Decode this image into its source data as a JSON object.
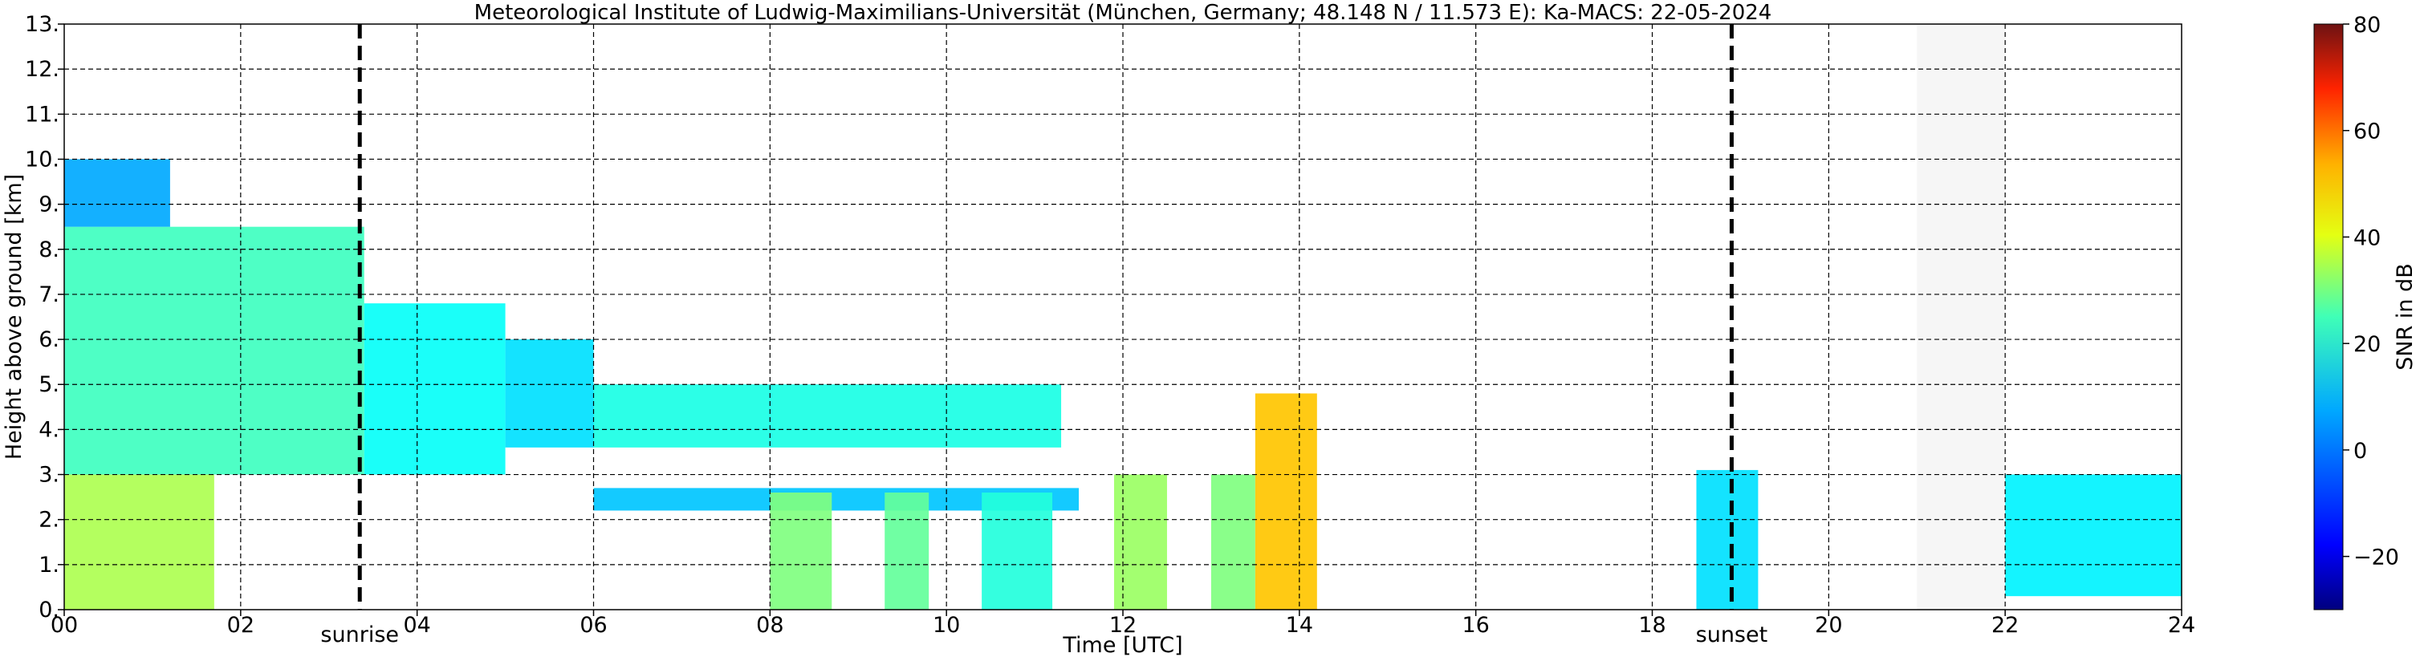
{
  "chart_data": {
    "type": "heatmap",
    "title": "Meteorological Institute of Ludwig-Maximilians-Universität (München, Germany; 48.148 N / 11.573 E):    Ka-MACS: 22-05-2024",
    "xlabel": "Time [UTC]",
    "ylabel": "Height above ground [km]",
    "xlim": [
      0,
      24
    ],
    "ylim": [
      0,
      13
    ],
    "x_ticks": [
      0,
      2,
      4,
      6,
      8,
      10,
      12,
      14,
      16,
      18,
      20,
      22,
      24
    ],
    "x_tick_labels": [
      "00",
      "02",
      "04",
      "06",
      "08",
      "10",
      "12",
      "14",
      "16",
      "18",
      "20",
      "22",
      "24"
    ],
    "y_ticks": [
      0,
      1,
      2,
      3,
      4,
      5,
      6,
      7,
      8,
      9,
      10,
      11,
      12,
      13
    ],
    "y_tick_labels": [
      "0.",
      "1.",
      "2.",
      "3.",
      "4.",
      "5.",
      "6.",
      "7.",
      "8.",
      "9.",
      "10.",
      "11.",
      "12.",
      "13."
    ],
    "grid": true,
    "colorbar": {
      "label": "SNR in dB",
      "range": [
        -30,
        80
      ],
      "ticks": [
        -20,
        0,
        20,
        40,
        60,
        80
      ],
      "tick_labels": [
        "−20",
        "0",
        "20",
        "40",
        "60",
        "80"
      ],
      "colormap": "jet"
    },
    "annotations": [
      {
        "text": "sunrise",
        "x": 3.35
      },
      {
        "text": "sunset",
        "x": 18.9
      }
    ],
    "no_data_interval": [
      21.0,
      22.0
    ],
    "echo_regions": [
      {
        "x0": 0.0,
        "x1": 1.7,
        "y0": 0.0,
        "y1": 3.0,
        "snr": 30
      },
      {
        "x0": 0.0,
        "x1": 3.4,
        "y0": 3.0,
        "y1": 8.5,
        "snr": 18
      },
      {
        "x0": 0.0,
        "x1": 1.2,
        "y0": 8.5,
        "y1": 10.0,
        "snr": 2
      },
      {
        "x0": 3.4,
        "x1": 5.0,
        "y0": 3.0,
        "y1": 6.8,
        "snr": 12
      },
      {
        "x0": 5.0,
        "x1": 6.0,
        "y0": 3.6,
        "y1": 6.0,
        "snr": 8
      },
      {
        "x0": 6.0,
        "x1": 11.3,
        "y0": 3.6,
        "y1": 5.0,
        "snr": 14
      },
      {
        "x0": 6.0,
        "x1": 11.5,
        "y0": 2.2,
        "y1": 2.7,
        "snr": 5
      },
      {
        "x0": 8.0,
        "x1": 8.7,
        "y0": 0.0,
        "y1": 2.6,
        "snr": 25
      },
      {
        "x0": 9.3,
        "x1": 9.8,
        "y0": 0.0,
        "y1": 2.6,
        "snr": 22
      },
      {
        "x0": 10.4,
        "x1": 11.2,
        "y0": 0.0,
        "y1": 2.6,
        "snr": 15
      },
      {
        "x0": 11.9,
        "x1": 12.5,
        "y0": 0.0,
        "y1": 3.0,
        "snr": 28
      },
      {
        "x0": 13.0,
        "x1": 13.5,
        "y0": 0.0,
        "y1": 3.0,
        "snr": 25
      },
      {
        "x0": 13.5,
        "x1": 14.2,
        "y0": 0.0,
        "y1": 4.8,
        "snr": 45
      },
      {
        "x0": 18.5,
        "x1": 19.2,
        "y0": 0.0,
        "y1": 3.1,
        "snr": 8
      },
      {
        "x0": 22.0,
        "x1": 24.0,
        "y0": 0.3,
        "y1": 3.0,
        "snr": 10
      }
    ]
  }
}
